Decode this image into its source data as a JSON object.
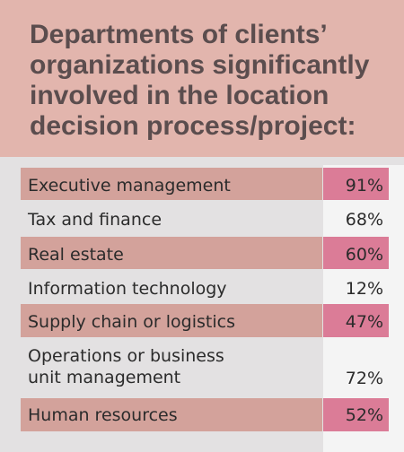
{
  "title": "Departments of clients’ organizations significantly involved in the location decision process/project:",
  "chart_data": {
    "type": "table",
    "title": "Departments of clients’ organizations significantly involved in the location decision process/project:",
    "rows": [
      {
        "label": "Executive management",
        "value": "91%",
        "highlight": true
      },
      {
        "label": "Tax and finance",
        "value": "68%",
        "highlight": false
      },
      {
        "label": "Real estate",
        "value": "60%",
        "highlight": true
      },
      {
        "label": "Information technology",
        "value": "12%",
        "highlight": false
      },
      {
        "label": "Supply chain or logistics",
        "value": "47%",
        "highlight": true
      },
      {
        "label": "Operations or business\nunit management",
        "value": "72%",
        "highlight": false
      },
      {
        "label": "Human resources",
        "value": "52%",
        "highlight": true
      }
    ]
  },
  "colors": {
    "header_bg": "#e2b5ad",
    "band": "#d3a29b",
    "value_box": "#db7c97",
    "panel_bg": "#e3e1e2",
    "title_text": "#5b4d4e"
  }
}
